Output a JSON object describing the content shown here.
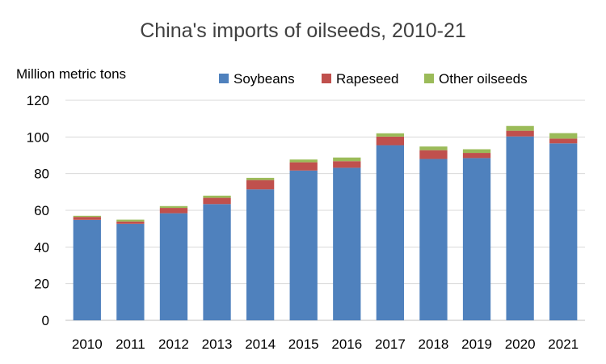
{
  "chart_data": {
    "type": "bar",
    "stacked": true,
    "title": "China's imports of oilseeds, 2010-21",
    "ylabel": "Million metric tons",
    "xlabel": "",
    "ylim": [
      0,
      120
    ],
    "yticks": [
      0,
      20,
      40,
      60,
      80,
      100,
      120
    ],
    "grid": true,
    "legend_position": "top-right",
    "categories": [
      "2010",
      "2011",
      "2012",
      "2013",
      "2014",
      "2015",
      "2016",
      "2017",
      "2018",
      "2019",
      "2020",
      "2021"
    ],
    "series": [
      {
        "name": "Soybeans",
        "color": "#4f81bd",
        "values": [
          54.8,
          52.6,
          58.4,
          63.4,
          71.4,
          81.7,
          83.2,
          95.5,
          88.0,
          88.5,
          100.3,
          96.5
        ]
      },
      {
        "name": "Rapeseed",
        "color": "#c0504d",
        "values": [
          1.6,
          1.3,
          2.9,
          3.4,
          5.1,
          4.5,
          3.6,
          4.7,
          4.8,
          2.8,
          3.1,
          2.6
        ]
      },
      {
        "name": "Other oilseeds",
        "color": "#9bbb59",
        "values": [
          0.6,
          1.0,
          1.0,
          1.2,
          1.2,
          1.5,
          2.0,
          1.8,
          2.0,
          2.0,
          2.6,
          3.0
        ]
      }
    ]
  }
}
